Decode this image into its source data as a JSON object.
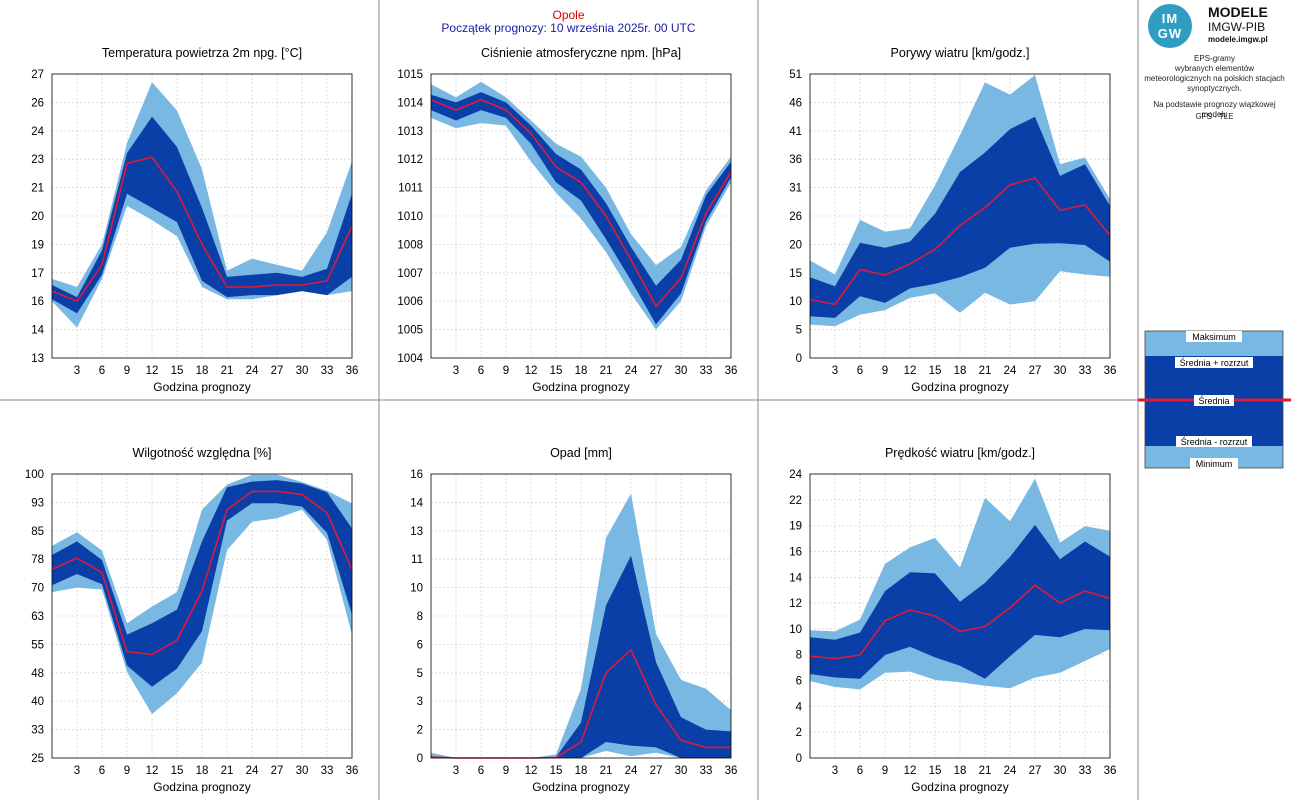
{
  "header": {
    "station": "Opole",
    "forecast_start": "Początek prognozy: 10 września 2025r. 00 UTC"
  },
  "logo": {
    "mark_top": "IM",
    "mark_bottom": "GW",
    "title": "MODELE",
    "subtitle": "IMGW-PIB",
    "url": "modele.imgw.pl"
  },
  "info": {
    "title": "EPS-gramy",
    "description": "wybranych elementów meteorologicznych na polskich stacjach synoptycznych.",
    "basis": "Na podstawie prognozy wiązkowej modelu",
    "model": "GFS - TLE"
  },
  "legend": {
    "labels": [
      "Maksimum",
      "Średnia + rozrzut",
      "Średnia",
      "Średnia - rozrzut",
      "Minimum"
    ]
  },
  "colors": {
    "envelope": "#7ab8e4",
    "spread": "#0a3fa8",
    "mean": "#e0193a",
    "grid": "#c8c8c8"
  },
  "chart_data": [
    {
      "type": "area",
      "title": "Temperatura powietrza 2m npg. [°C]",
      "xlabel": "Godzina prognozy",
      "x": [
        0,
        3,
        6,
        9,
        12,
        15,
        18,
        21,
        24,
        27,
        30,
        33,
        36
      ],
      "xticks": [
        3,
        6,
        9,
        12,
        15,
        18,
        21,
        24,
        27,
        30,
        33,
        36
      ],
      "ylim": [
        13,
        27
      ],
      "yticks": [
        "13",
        "14",
        "16",
        "17",
        "19",
        "20",
        "21",
        "23",
        "24",
        "26",
        "27"
      ],
      "series": [
        {
          "name": "Maksimum",
          "values": [
            16.9,
            16.5,
            18.6,
            23.6,
            26.6,
            25.2,
            22.3,
            17.3,
            17.9,
            17.6,
            17.3,
            19.2,
            22.7
          ]
        },
        {
          "name": "Średnia + rozrzut",
          "values": [
            16.6,
            16.0,
            18.3,
            23.1,
            24.9,
            23.4,
            20.4,
            17.0,
            17.1,
            17.2,
            17.0,
            17.4,
            21.1
          ]
        },
        {
          "name": "Średnia",
          "values": [
            16.3,
            15.8,
            17.6,
            22.6,
            22.9,
            21.2,
            18.6,
            16.5,
            16.5,
            16.6,
            16.6,
            16.8,
            19.5
          ]
        },
        {
          "name": "Średnia - rozrzut",
          "values": [
            15.9,
            15.2,
            17.1,
            21.1,
            20.4,
            19.7,
            16.8,
            16.0,
            16.1,
            16.1,
            16.3,
            16.1,
            17.0
          ]
        },
        {
          "name": "Minimum",
          "values": [
            15.8,
            14.5,
            16.9,
            20.5,
            19.8,
            19.0,
            16.5,
            15.9,
            15.9,
            16.1,
            16.3,
            16.1,
            16.3
          ]
        }
      ]
    },
    {
      "type": "area",
      "title": "Ciśnienie atmosferyczne npm. [hPa]",
      "xlabel": "Godzina prognozy",
      "x": [
        0,
        3,
        6,
        9,
        12,
        15,
        18,
        21,
        24,
        27,
        30,
        33,
        36
      ],
      "xticks": [
        3,
        6,
        9,
        12,
        15,
        18,
        21,
        24,
        27,
        30,
        33,
        36
      ],
      "ylim": [
        1004,
        1015
      ],
      "yticks": [
        "1004",
        "1005",
        "1006",
        "1007",
        "1008",
        "1010",
        "1011",
        "1012",
        "1013",
        "1014",
        "1015"
      ],
      "series": [
        {
          "name": "Maksimum",
          "values": [
            1014.6,
            1014.1,
            1014.7,
            1014.1,
            1013.2,
            1012.3,
            1011.8,
            1010.6,
            1008.8,
            1007.6,
            1008.3,
            1010.5,
            1011.8
          ]
        },
        {
          "name": "Średnia + rozrzut",
          "values": [
            1014.2,
            1013.9,
            1014.3,
            1013.9,
            1013.0,
            1011.9,
            1011.3,
            1010.0,
            1008.3,
            1006.8,
            1007.8,
            1010.3,
            1011.6
          ]
        },
        {
          "name": "Średnia",
          "values": [
            1014.0,
            1013.6,
            1014.0,
            1013.6,
            1012.7,
            1011.4,
            1010.8,
            1009.5,
            1007.8,
            1006.0,
            1007.1,
            1009.6,
            1011.2
          ]
        },
        {
          "name": "Średnia - rozrzut",
          "values": [
            1013.6,
            1013.2,
            1013.6,
            1013.3,
            1012.3,
            1010.8,
            1010.1,
            1008.6,
            1007.0,
            1005.3,
            1006.5,
            1009.3,
            1011.0
          ]
        },
        {
          "name": "Minimum",
          "values": [
            1013.3,
            1012.9,
            1013.1,
            1013.0,
            1011.6,
            1010.4,
            1009.4,
            1008.1,
            1006.5,
            1005.1,
            1006.2,
            1009.1,
            1010.8
          ]
        }
      ]
    },
    {
      "type": "area",
      "title": "Porywy wiatru [km/godz.]",
      "xlabel": "Godzina prognozy",
      "x": [
        0,
        3,
        6,
        9,
        12,
        15,
        18,
        21,
        24,
        27,
        30,
        33,
        36
      ],
      "xticks": [
        3,
        6,
        9,
        12,
        15,
        18,
        21,
        24,
        27,
        30,
        33,
        36
      ],
      "ylim": [
        0,
        51
      ],
      "yticks": [
        "0",
        "5",
        "10",
        "15",
        "20",
        "26",
        "31",
        "36",
        "41",
        "46",
        "51"
      ],
      "series": [
        {
          "name": "Maksimum",
          "values": [
            17.5,
            15.0,
            24.8,
            22.7,
            23.3,
            31.0,
            40.0,
            49.5,
            47.3,
            50.8,
            34.8,
            36.0,
            28.5
          ]
        },
        {
          "name": "Średnia + rozrzut",
          "values": [
            14.5,
            12.9,
            20.7,
            19.8,
            20.9,
            25.9,
            33.4,
            36.9,
            41.1,
            43.3,
            32.7,
            34.8,
            27.3
          ]
        },
        {
          "name": "Średnia",
          "values": [
            10.5,
            9.6,
            15.9,
            14.9,
            16.9,
            19.5,
            23.8,
            27.0,
            31.1,
            32.3,
            26.5,
            27.5,
            22.0
          ]
        },
        {
          "name": "Średnia - rozrzut",
          "values": [
            7.5,
            7.2,
            11.1,
            9.9,
            12.5,
            13.3,
            14.5,
            16.2,
            19.8,
            20.5,
            20.6,
            20.3,
            17.3
          ]
        },
        {
          "name": "Minimum",
          "values": [
            6.0,
            5.7,
            7.8,
            8.6,
            10.8,
            11.6,
            8.1,
            11.7,
            9.6,
            10.2,
            15.6,
            15.0,
            14.6
          ]
        }
      ]
    },
    {
      "type": "area",
      "title": "Wilgotność względna [%]",
      "xlabel": "Godzina prognozy",
      "x": [
        0,
        3,
        6,
        9,
        12,
        15,
        18,
        21,
        24,
        27,
        30,
        33,
        36
      ],
      "xticks": [
        3,
        6,
        9,
        12,
        15,
        18,
        21,
        24,
        27,
        30,
        33,
        36
      ],
      "ylim": [
        25,
        100
      ],
      "yticks": [
        "25",
        "33",
        "40",
        "48",
        "55",
        "63",
        "70",
        "78",
        "85",
        "93",
        "100"
      ],
      "series": [
        {
          "name": "Maksimum",
          "values": [
            81.0,
            84.6,
            79.8,
            60.6,
            65.0,
            68.8,
            90.6,
            97.2,
            99.8,
            99.8,
            97.9,
            95.6,
            92.2
          ]
        },
        {
          "name": "Średnia + rozrzut",
          "values": [
            78.6,
            82.2,
            77.3,
            57.6,
            60.6,
            64.2,
            82.2,
            96.5,
            98.0,
            98.4,
            97.5,
            95.2,
            85.6
          ]
        },
        {
          "name": "Średnia",
          "values": [
            74.8,
            77.8,
            74.0,
            53.1,
            52.3,
            56.1,
            69.1,
            90.6,
            95.4,
            95.4,
            94.6,
            89.7,
            74.8
          ]
        },
        {
          "name": "Średnia - rozrzut",
          "values": [
            70.6,
            73.6,
            70.9,
            49.4,
            43.8,
            48.6,
            58.5,
            87.7,
            92.3,
            92.3,
            91.4,
            84.5,
            62.9
          ]
        },
        {
          "name": "Minimum",
          "values": [
            68.8,
            70.0,
            69.5,
            47.7,
            36.6,
            42.1,
            50.2,
            79.9,
            87.4,
            88.3,
            90.6,
            82.6,
            57.6
          ]
        }
      ]
    },
    {
      "type": "area",
      "title": "Opad [mm]",
      "xlabel": "Godzina prognozy",
      "x": [
        0,
        3,
        6,
        9,
        12,
        15,
        18,
        21,
        24,
        27,
        30,
        33,
        36
      ],
      "xticks": [
        3,
        6,
        9,
        12,
        15,
        18,
        21,
        24,
        27,
        30,
        33,
        36
      ],
      "ylim": [
        0,
        16
      ],
      "yticks": [
        "0",
        "2",
        "3",
        "5",
        "6",
        "8",
        "10",
        "11",
        "13",
        "14",
        "16"
      ],
      "series": [
        {
          "name": "Maksimum",
          "values": [
            0.3,
            0.0,
            0.0,
            0.0,
            0.0,
            0.2,
            3.9,
            12.4,
            14.9,
            7.0,
            4.4,
            3.9,
            2.7
          ]
        },
        {
          "name": "Średnia + rozrzut",
          "values": [
            0.1,
            0.0,
            0.0,
            0.0,
            0.0,
            0.05,
            2.0,
            8.6,
            11.4,
            5.4,
            2.3,
            1.6,
            1.5
          ]
        },
        {
          "name": "Średnia",
          "values": [
            0.05,
            0.0,
            0.0,
            0.0,
            0.0,
            0.02,
            0.9,
            4.8,
            6.1,
            3.0,
            1.0,
            0.6,
            0.6
          ]
        },
        {
          "name": "Średnia - rozrzut",
          "values": [
            0.0,
            0.0,
            0.0,
            0.0,
            0.0,
            0.0,
            0.0,
            0.9,
            0.7,
            0.6,
            0.0,
            0.0,
            0.0
          ]
        },
        {
          "name": "Minimum",
          "values": [
            0.0,
            0.0,
            0.0,
            0.0,
            0.0,
            0.0,
            0.0,
            0.4,
            0.1,
            0.3,
            0.0,
            0.0,
            0.0
          ]
        }
      ]
    },
    {
      "type": "area",
      "title": "Prędkość wiatru [km/godz.]",
      "xlabel": "Godzina prognozy",
      "x": [
        0,
        3,
        6,
        9,
        12,
        15,
        18,
        21,
        24,
        27,
        30,
        33,
        36
      ],
      "xticks": [
        3,
        6,
        9,
        12,
        15,
        18,
        21,
        24,
        27,
        30,
        33,
        36
      ],
      "ylim": [
        0,
        24
      ],
      "yticks": [
        "0",
        "2",
        "4",
        "6",
        "8",
        "10",
        "12",
        "14",
        "16",
        "19",
        "22",
        "24"
      ],
      "series": [
        {
          "name": "Maksimum",
          "values": [
            10.8,
            10.7,
            11.7,
            16.4,
            17.8,
            18.6,
            16.1,
            22.0,
            20.0,
            23.6,
            18.2,
            19.6,
            19.2
          ]
        },
        {
          "name": "Średnia + rozrzut",
          "values": [
            10.2,
            10.0,
            10.6,
            14.1,
            15.7,
            15.6,
            13.2,
            14.8,
            17.0,
            19.7,
            16.8,
            18.3,
            17.0
          ]
        },
        {
          "name": "Średnia",
          "values": [
            8.6,
            8.4,
            8.7,
            11.6,
            12.5,
            12.0,
            10.7,
            11.1,
            12.7,
            14.6,
            13.1,
            14.1,
            13.5
          ]
        },
        {
          "name": "Średnia - rozrzut",
          "values": [
            7.1,
            6.8,
            6.7,
            8.7,
            9.4,
            8.5,
            7.8,
            6.7,
            8.6,
            10.4,
            10.2,
            10.9,
            10.8
          ]
        },
        {
          "name": "Minimum",
          "values": [
            6.5,
            6.0,
            5.8,
            7.2,
            7.3,
            6.6,
            6.4,
            6.1,
            5.9,
            6.8,
            7.2,
            8.2,
            9.2
          ]
        }
      ]
    }
  ]
}
